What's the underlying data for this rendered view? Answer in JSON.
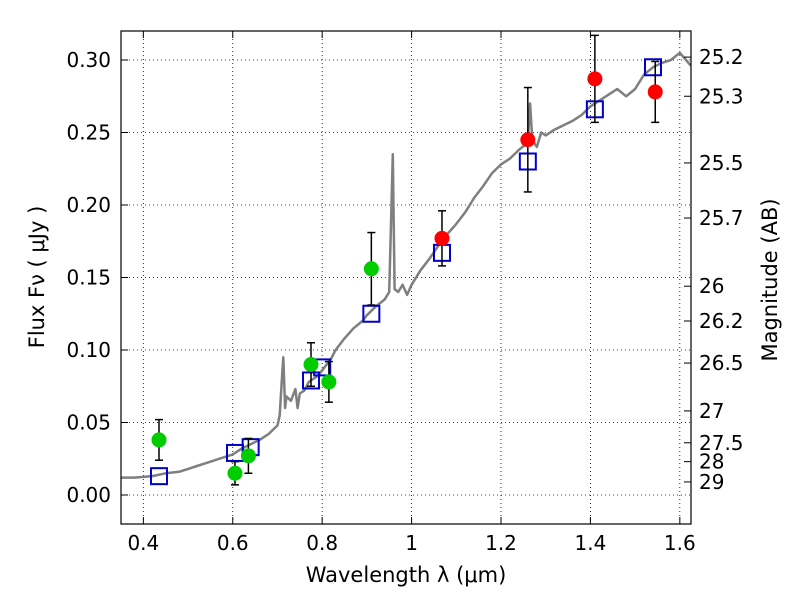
{
  "chart_data": {
    "type": "scatter",
    "xlabel": "Wavelength  λ (μm)",
    "ylabel": "Flux  Fν  ( μJy )",
    "ylabel_right": "Magnitude (AB)",
    "xlim": [
      0.35,
      1.625
    ],
    "ylim": [
      -0.02,
      0.32
    ],
    "x_ticks": [
      {
        "value": 0.4,
        "label": "0.4"
      },
      {
        "value": 0.6,
        "label": "0.6"
      },
      {
        "value": 0.8,
        "label": "0.8"
      },
      {
        "value": 1.0,
        "label": "1"
      },
      {
        "value": 1.2,
        "label": "1.2"
      },
      {
        "value": 1.4,
        "label": "1.4"
      },
      {
        "value": 1.6,
        "label": "1.6"
      }
    ],
    "y_ticks": [
      {
        "value": 0.0,
        "label": "0.00"
      },
      {
        "value": 0.05,
        "label": "0.05"
      },
      {
        "value": 0.1,
        "label": "0.10"
      },
      {
        "value": 0.15,
        "label": "0.15"
      },
      {
        "value": 0.2,
        "label": "0.20"
      },
      {
        "value": 0.25,
        "label": "0.25"
      },
      {
        "value": 0.3,
        "label": "0.30"
      }
    ],
    "mag_ticks": [
      {
        "flux": 0.302,
        "label": "25.2"
      },
      {
        "flux": 0.275,
        "label": "25.3"
      },
      {
        "flux": 0.229,
        "label": "25.5"
      },
      {
        "flux": 0.191,
        "label": "25.7"
      },
      {
        "flux": 0.144,
        "label": "26"
      },
      {
        "flux": 0.12,
        "label": "26.2"
      },
      {
        "flux": 0.091,
        "label": "26.5"
      },
      {
        "flux": 0.058,
        "label": "27"
      },
      {
        "flux": 0.036,
        "label": "27.5"
      },
      {
        "flux": 0.023,
        "label": "28"
      },
      {
        "flux": 0.009,
        "label": "29"
      }
    ],
    "grid": true,
    "colors": {
      "template": "#7f7f7f",
      "green": "#00cc00",
      "red": "#ff0000",
      "model": "#0000cc",
      "errorbar": "#000000"
    },
    "series": [
      {
        "type": "line",
        "style": "template",
        "points": [
          [
            0.35,
            0.012
          ],
          [
            0.38,
            0.012
          ],
          [
            0.42,
            0.013
          ],
          [
            0.45,
            0.015
          ],
          [
            0.48,
            0.016
          ],
          [
            0.5,
            0.018
          ],
          [
            0.52,
            0.02
          ],
          [
            0.55,
            0.023
          ],
          [
            0.58,
            0.026
          ],
          [
            0.6,
            0.028
          ],
          [
            0.62,
            0.032
          ],
          [
            0.64,
            0.035
          ],
          [
            0.66,
            0.038
          ],
          [
            0.68,
            0.042
          ],
          [
            0.7,
            0.048
          ],
          [
            0.705,
            0.055
          ],
          [
            0.71,
            0.08
          ],
          [
            0.713,
            0.095
          ],
          [
            0.717,
            0.06
          ],
          [
            0.72,
            0.068
          ],
          [
            0.73,
            0.065
          ],
          [
            0.74,
            0.073
          ],
          [
            0.745,
            0.06
          ],
          [
            0.75,
            0.07
          ],
          [
            0.76,
            0.072
          ],
          [
            0.77,
            0.078
          ],
          [
            0.78,
            0.08
          ],
          [
            0.79,
            0.082
          ],
          [
            0.8,
            0.086
          ],
          [
            0.82,
            0.094
          ],
          [
            0.83,
            0.1
          ],
          [
            0.85,
            0.108
          ],
          [
            0.87,
            0.115
          ],
          [
            0.89,
            0.12
          ],
          [
            0.9,
            0.124
          ],
          [
            0.92,
            0.13
          ],
          [
            0.94,
            0.135
          ],
          [
            0.95,
            0.14
          ],
          [
            0.955,
            0.2
          ],
          [
            0.958,
            0.235
          ],
          [
            0.962,
            0.142
          ],
          [
            0.97,
            0.14
          ],
          [
            0.98,
            0.145
          ],
          [
            0.99,
            0.138
          ],
          [
            1.0,
            0.145
          ],
          [
            1.02,
            0.155
          ],
          [
            1.04,
            0.163
          ],
          [
            1.06,
            0.172
          ],
          [
            1.08,
            0.18
          ],
          [
            1.1,
            0.187
          ],
          [
            1.12,
            0.195
          ],
          [
            1.14,
            0.205
          ],
          [
            1.16,
            0.213
          ],
          [
            1.18,
            0.222
          ],
          [
            1.2,
            0.228
          ],
          [
            1.22,
            0.232
          ],
          [
            1.24,
            0.238
          ],
          [
            1.26,
            0.243
          ],
          [
            1.265,
            0.27
          ],
          [
            1.27,
            0.245
          ],
          [
            1.28,
            0.24
          ],
          [
            1.29,
            0.25
          ],
          [
            1.3,
            0.248
          ],
          [
            1.32,
            0.252
          ],
          [
            1.34,
            0.255
          ],
          [
            1.36,
            0.258
          ],
          [
            1.38,
            0.262
          ],
          [
            1.4,
            0.268
          ],
          [
            1.42,
            0.272
          ],
          [
            1.44,
            0.276
          ],
          [
            1.46,
            0.28
          ],
          [
            1.48,
            0.275
          ],
          [
            1.5,
            0.28
          ],
          [
            1.52,
            0.29
          ],
          [
            1.54,
            0.295
          ],
          [
            1.56,
            0.298
          ],
          [
            1.58,
            0.3
          ],
          [
            1.6,
            0.305
          ],
          [
            1.625,
            0.296
          ]
        ]
      },
      {
        "type": "scatter",
        "marker": "square",
        "style": "model",
        "points": [
          [
            0.435,
            0.013
          ],
          [
            0.605,
            0.029
          ],
          [
            0.64,
            0.033
          ],
          [
            0.775,
            0.079
          ],
          [
            0.8,
            0.088
          ],
          [
            0.91,
            0.125
          ],
          [
            1.068,
            0.167
          ],
          [
            1.26,
            0.23
          ],
          [
            1.41,
            0.266
          ],
          [
            1.54,
            0.295
          ]
        ]
      },
      {
        "type": "scatter",
        "marker": "circle",
        "style": "green",
        "points": [
          {
            "x": 0.435,
            "y": 0.038,
            "yerr": 0.014
          },
          {
            "x": 0.605,
            "y": 0.015,
            "yerr": 0.008
          },
          {
            "x": 0.635,
            "y": 0.027,
            "yerr": 0.012
          },
          {
            "x": 0.775,
            "y": 0.09,
            "yerr": 0.015
          },
          {
            "x": 0.815,
            "y": 0.078,
            "yerr": 0.014
          },
          {
            "x": 0.91,
            "y": 0.156,
            "yerr": 0.025
          }
        ]
      },
      {
        "type": "scatter",
        "marker": "circle",
        "style": "red",
        "points": [
          {
            "x": 1.068,
            "y": 0.177,
            "yerr": 0.019
          },
          {
            "x": 1.26,
            "y": 0.245,
            "yerr": 0.036
          },
          {
            "x": 1.41,
            "y": 0.287,
            "yerr": 0.03
          },
          {
            "x": 1.545,
            "y": 0.278,
            "yerr": 0.021
          }
        ]
      }
    ]
  }
}
